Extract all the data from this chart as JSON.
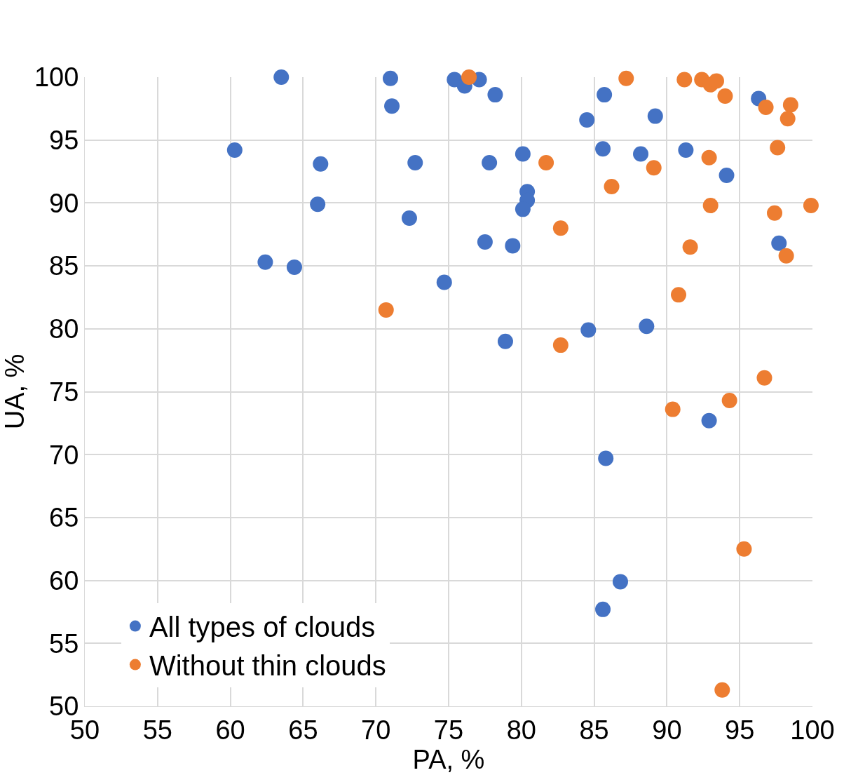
{
  "chart_data": {
    "type": "scatter",
    "xlabel": "PA, %",
    "ylabel": "UA, %",
    "xlim": [
      50,
      100
    ],
    "ylim": [
      50,
      100
    ],
    "xticks": [
      50,
      55,
      60,
      65,
      70,
      75,
      80,
      85,
      90,
      95,
      100
    ],
    "yticks": [
      50,
      55,
      60,
      65,
      70,
      75,
      80,
      85,
      90,
      95,
      100
    ],
    "grid": true,
    "legend": "bottom left",
    "marker": "circle",
    "series": [
      {
        "name": "All types of clouds",
        "color": "#4472c4",
        "x": [
          63.5,
          71.0,
          71.1,
          60.3,
          66.2,
          72.7,
          66.0,
          72.3,
          62.4,
          64.4,
          74.7,
          75.4,
          76.1,
          77.1,
          78.2,
          77.8,
          80.1,
          80.4,
          80.4,
          80.1,
          77.5,
          79.4,
          78.9,
          84.5,
          85.7,
          85.6,
          88.2,
          89.2,
          91.3,
          94.1,
          96.3,
          97.7,
          84.6,
          88.6,
          92.9,
          85.8,
          86.8,
          85.6
        ],
        "values": [
          100,
          99.9,
          97.7,
          94.2,
          93.1,
          93.2,
          89.9,
          88.8,
          85.3,
          84.9,
          83.7,
          99.8,
          99.3,
          99.8,
          98.6,
          93.2,
          93.9,
          90.9,
          90.2,
          89.5,
          86.9,
          86.6,
          79.0,
          96.6,
          98.6,
          94.3,
          93.9,
          96.9,
          94.2,
          92.2,
          98.3,
          86.8,
          79.9,
          80.2,
          72.7,
          69.7,
          59.9,
          57.7
        ]
      },
      {
        "name": "Without thin clouds",
        "color": "#ed7d31",
        "x": [
          76.4,
          87.2,
          91.2,
          92.4,
          93.0,
          93.4,
          94.0,
          96.8,
          98.5,
          98.3,
          97.6,
          81.7,
          89.1,
          92.9,
          86.2,
          93.0,
          97.4,
          99.9,
          82.7,
          91.6,
          98.2,
          90.8,
          70.7,
          82.7,
          96.7,
          90.4,
          94.3,
          95.3,
          93.8
        ],
        "values": [
          100,
          99.9,
          99.8,
          99.8,
          99.4,
          99.7,
          98.5,
          97.6,
          97.8,
          96.7,
          94.4,
          93.2,
          92.8,
          93.6,
          91.3,
          89.8,
          89.2,
          89.8,
          88.0,
          86.5,
          85.8,
          82.7,
          81.5,
          78.7,
          76.1,
          73.6,
          74.3,
          62.5,
          51.3
        ]
      }
    ]
  }
}
